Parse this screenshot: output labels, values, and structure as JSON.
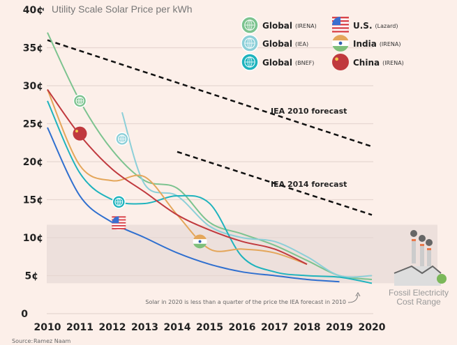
{
  "chart_data": {
    "type": "line",
    "title": "Utility Scale Solar Price per kWh",
    "xlabel": "",
    "ylabel": "",
    "xlim": [
      2010,
      2020
    ],
    "ylim": [
      0,
      40
    ],
    "x_ticks": [
      "2010",
      "2011",
      "2012",
      "2013",
      "2014",
      "2015",
      "2016",
      "2017",
      "2018",
      "2019",
      "2020"
    ],
    "y_ticks": [
      {
        "v": 0,
        "label": "0"
      },
      {
        "v": 5,
        "label": "5¢"
      },
      {
        "v": 10,
        "label": "10¢"
      },
      {
        "v": 15,
        "label": "15¢"
      },
      {
        "v": 20,
        "label": "20¢"
      },
      {
        "v": 25,
        "label": "25¢"
      },
      {
        "v": 30,
        "label": "30¢"
      },
      {
        "v": 35,
        "label": "35¢"
      },
      {
        "v": 40,
        "label": "40¢"
      }
    ],
    "grid": true,
    "legend_placement": "top-right",
    "series": [
      {
        "name": "Global",
        "source": "(IRENA)",
        "color": "#7cc38f",
        "icon": "globe-icon",
        "marker": [
          2011,
          28
        ],
        "x": [
          2010,
          2011,
          2012,
          2013,
          2014,
          2015,
          2016,
          2017,
          2018,
          2019,
          2020
        ],
        "y": [
          37,
          28,
          21.5,
          17.5,
          16.5,
          12,
          10.5,
          9,
          7,
          5,
          4.5
        ]
      },
      {
        "name": "Global",
        "source": "(IEA)",
        "color": "#8ccfd8",
        "icon": "globe-icon",
        "marker": [
          2012.3,
          23
        ],
        "x": [
          2012.3,
          2013,
          2014,
          2015,
          2016,
          2017,
          2018,
          2019,
          2020
        ],
        "y": [
          26.5,
          17,
          15.5,
          11.5,
          10,
          9.5,
          7.5,
          5,
          5
        ]
      },
      {
        "name": "Global",
        "source": "(BNEF)",
        "color": "#1eb3bd",
        "icon": "globe-icon",
        "marker": [
          2012.2,
          14.7
        ],
        "x": [
          2010,
          2011,
          2012,
          2013,
          2014,
          2015,
          2016,
          2017,
          2018,
          2019,
          2020
        ],
        "y": [
          28,
          18.5,
          15,
          14.5,
          15.5,
          14.5,
          7.5,
          5.5,
          5,
          4.8,
          4
        ]
      },
      {
        "name": "U.S.",
        "source": "(Lazard)",
        "color": "#2f6fcf",
        "icon": "us-flag-icon",
        "marker": [
          2012.2,
          11.9
        ],
        "x": [
          2010,
          2011,
          2012,
          2013,
          2014,
          2015,
          2016,
          2017,
          2018,
          2019
        ],
        "y": [
          24.5,
          15.5,
          12,
          10,
          8,
          6.5,
          5.5,
          5,
          4.5,
          4.2
        ]
      },
      {
        "name": "India",
        "source": "(IRENA)",
        "color": "#e4a65a",
        "icon": "india-flag-icon",
        "marker": [
          2014.7,
          9.5
        ],
        "x": [
          2010,
          2011,
          2012,
          2013,
          2014,
          2015,
          2016,
          2017,
          2018
        ],
        "y": [
          29.5,
          19.5,
          17.5,
          18,
          13,
          8.5,
          8.5,
          8,
          6.5
        ]
      },
      {
        "name": "China",
        "source": "(IRENA)",
        "color": "#c0393e",
        "icon": "china-flag-icon",
        "marker": [
          2011,
          23.7
        ],
        "x": [
          2010,
          2011,
          2012,
          2013,
          2014,
          2015,
          2016,
          2017,
          2018
        ],
        "y": [
          29.5,
          23.5,
          19,
          16,
          13,
          11,
          9.5,
          8.5,
          6.5
        ]
      }
    ],
    "forecasts": [
      {
        "label": "IEA 2010 forecast",
        "x": [
          2010,
          2020
        ],
        "y": [
          36,
          22
        ]
      },
      {
        "label": "IEA 2014 forecast",
        "x": [
          2014,
          2020
        ],
        "y": [
          21.3,
          13
        ]
      }
    ],
    "fossil_range": {
      "label_line1": "Fossil Electricity",
      "label_line2": "Cost Range",
      "min": 4,
      "max": 11.7
    },
    "annotation": "Solar in 2020 is less than a quarter of the price the IEA forecast in 2010",
    "source_label": "Source:",
    "source_value": "Ramez Naam"
  }
}
